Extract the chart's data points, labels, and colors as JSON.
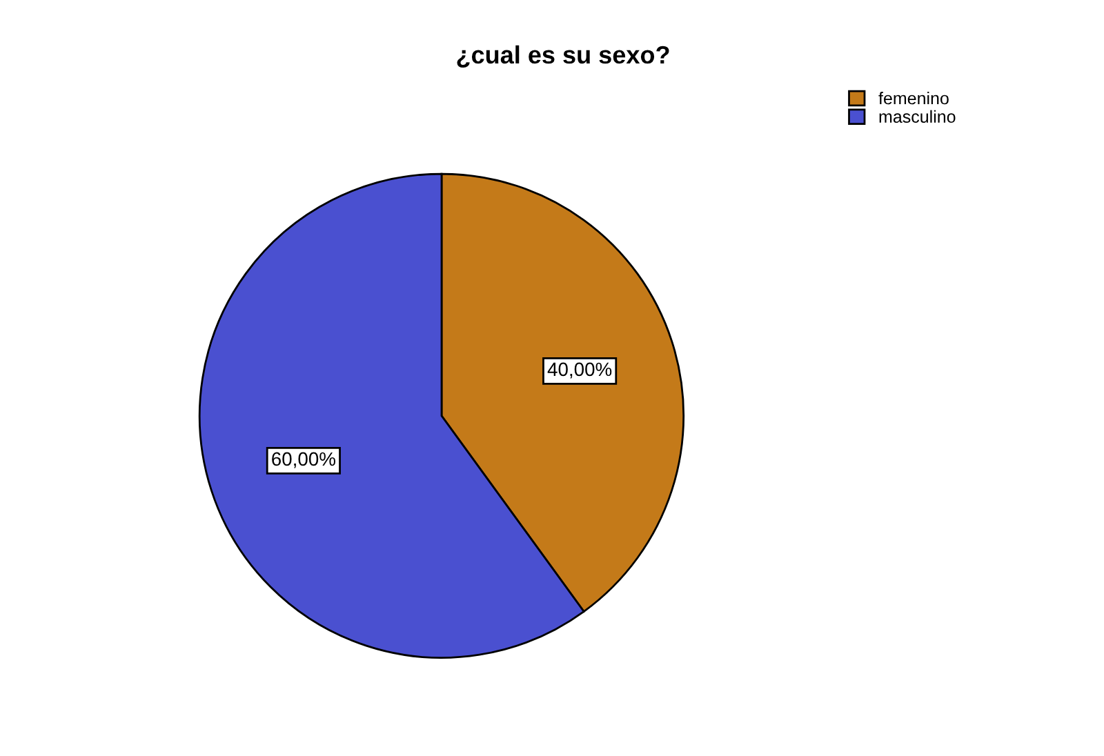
{
  "chart_data": {
    "type": "pie",
    "title": "¿cual es su sexo?",
    "categories": [
      "femenino",
      "masculino"
    ],
    "values": [
      40,
      60
    ],
    "colors": [
      "#c47a19",
      "#4a50d0"
    ],
    "value_labels": [
      "40,00%",
      "60,00%"
    ],
    "legend": "top right"
  }
}
